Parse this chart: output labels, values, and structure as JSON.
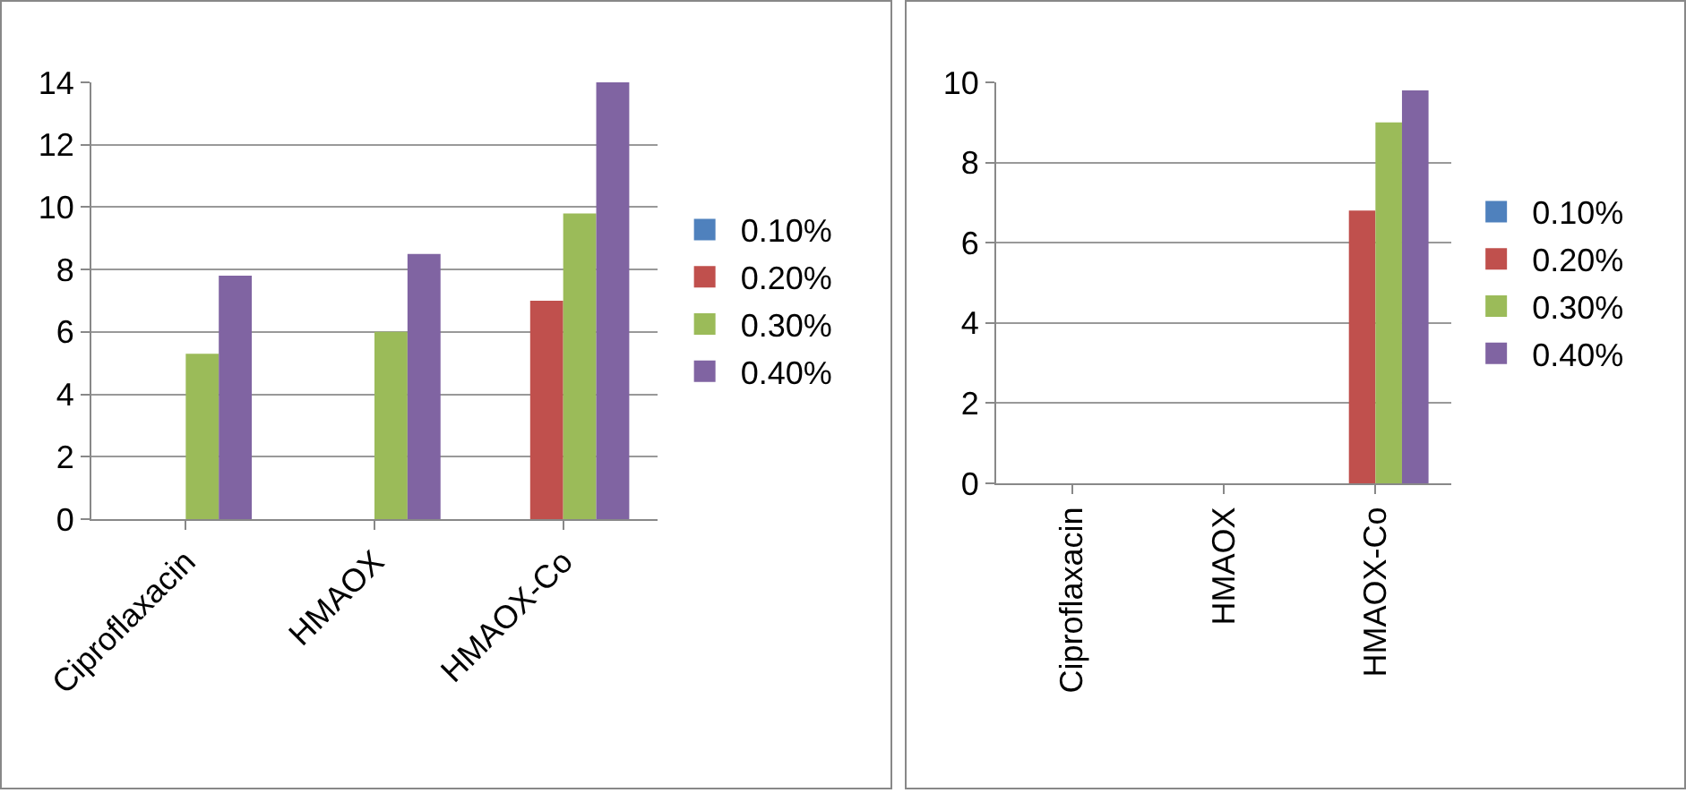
{
  "chart_data": [
    {
      "type": "bar",
      "categories": [
        "Ciproflaxacin",
        "HMAOX",
        "HMAOX-Co"
      ],
      "series": [
        {
          "name": "0.10%",
          "color": "#4f81bd",
          "values": [
            0,
            0,
            0
          ]
        },
        {
          "name": "0.20%",
          "color": "#c0504d",
          "values": [
            0,
            0,
            7
          ]
        },
        {
          "name": "0.30%",
          "color": "#9bbb59",
          "values": [
            5.3,
            6,
            9.8
          ]
        },
        {
          "name": "0.40%",
          "color": "#8064a2",
          "values": [
            7.8,
            8.5,
            14
          ]
        }
      ],
      "ylim": [
        0,
        14
      ],
      "yticks": [
        0,
        2,
        4,
        6,
        8,
        10,
        12,
        14
      ],
      "grid": "y",
      "legend": "right"
    },
    {
      "type": "bar",
      "categories": [
        "Ciproflaxacin",
        "HMAOX",
        "HMAOX-Co"
      ],
      "series": [
        {
          "name": "0.10%",
          "color": "#4f81bd",
          "values": [
            0,
            0,
            0
          ]
        },
        {
          "name": "0.20%",
          "color": "#c0504d",
          "values": [
            0,
            0,
            6.8
          ]
        },
        {
          "name": "0.30%",
          "color": "#9bbb59",
          "values": [
            0,
            0,
            9
          ]
        },
        {
          "name": "0.40%",
          "color": "#8064a2",
          "values": [
            0,
            0,
            9.8
          ]
        }
      ],
      "ylim": [
        0,
        10
      ],
      "yticks": [
        0,
        2,
        4,
        6,
        8,
        10
      ],
      "grid": "y",
      "legend": "right"
    }
  ]
}
